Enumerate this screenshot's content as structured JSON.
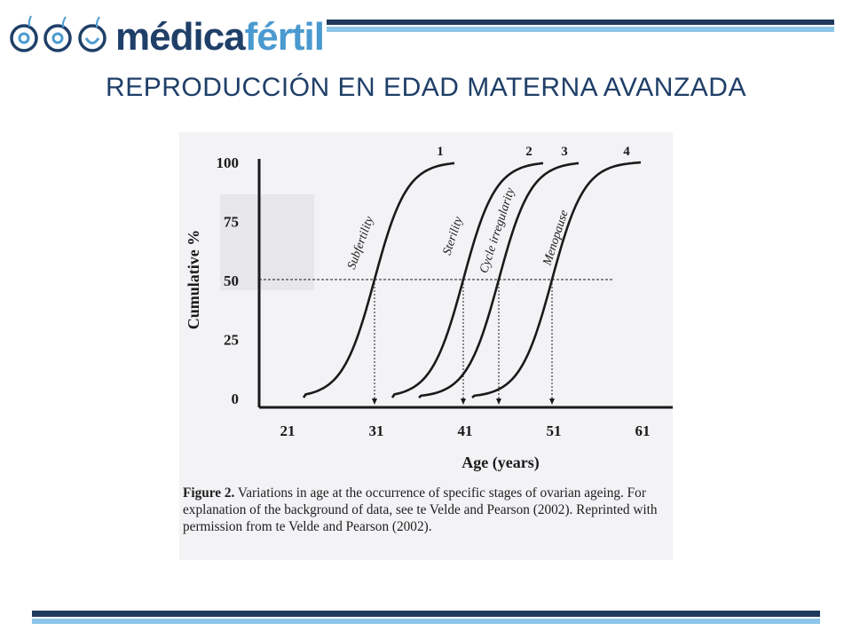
{
  "header": {
    "logo_text_main": "médica",
    "logo_text_accent": "fértil",
    "title": "REPRODUCCIÓN EN EDAD MATERNA AVANZADA"
  },
  "colors": {
    "brand_dark": "#1f3a5c",
    "brand_light": "#8cc6e8",
    "title": "#1f3f68"
  },
  "figure": {
    "caption_label": "Figure 2.",
    "caption_text": "Variations in age at the occurrence of specific stages of ovarian ageing. For explanation of the background of data, see te Velde and Pearson (2002). Reprinted with permission from te Velde and Pearson (2002)."
  },
  "chart_data": {
    "type": "line",
    "xlabel": "Age (years)",
    "ylabel": "Cumulative %",
    "xlim": [
      18,
      63
    ],
    "ylim": [
      0,
      100
    ],
    "x_ticks": [
      21,
      31,
      41,
      51,
      61
    ],
    "y_ticks": [
      0,
      25,
      50,
      75,
      100
    ],
    "reference_line": {
      "y": 50,
      "style": "dashed"
    },
    "grid": false,
    "series": [
      {
        "name": "Subfertility",
        "number": "1",
        "median_age": 31,
        "start_age": 23,
        "end_age": 40
      },
      {
        "name": "Sterility",
        "number": "2",
        "median_age": 41,
        "start_age": 33,
        "end_age": 50
      },
      {
        "name": "Cycle irregularity",
        "number": "3",
        "median_age": 45,
        "start_age": 36,
        "end_age": 54
      },
      {
        "name": "Menopause",
        "number": "4",
        "median_age": 51,
        "start_age": 42,
        "end_age": 61
      }
    ]
  }
}
